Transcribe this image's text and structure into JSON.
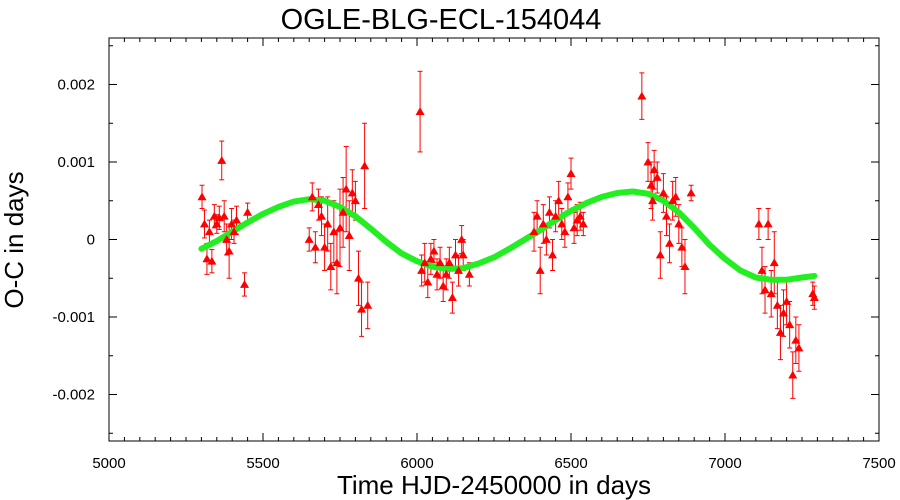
{
  "chart_data": {
    "type": "scatter",
    "title": "OGLE-BLG-ECL-154044",
    "xlabel": "Time HJD-2450000 in days",
    "ylabel": "O-C in days",
    "xlim": [
      5000,
      7500
    ],
    "ylim": [
      -0.0026,
      0.0026
    ],
    "x_ticks": [
      5000,
      5500,
      6000,
      6500,
      7000,
      7500
    ],
    "x_tick_labels": [
      "5000",
      "5500",
      "6000",
      "6500",
      "7000",
      "7500"
    ],
    "y_ticks": [
      -0.002,
      -0.001,
      0,
      0.001,
      0.002
    ],
    "y_tick_labels": [
      "-0.002",
      "-0.001",
      "0",
      "0.001",
      "0.002"
    ],
    "grid": false,
    "legend": "none",
    "series": [
      {
        "type": "scatter-errorbar",
        "color": "#ff0000",
        "marker": "triangle",
        "points": [
          {
            "x": 5302,
            "y": 0.00055,
            "err": 0.00015
          },
          {
            "x": 5310,
            "y": 0.0002,
            "err": 0.00018
          },
          {
            "x": 5318,
            "y": -0.00025,
            "err": 0.0002
          },
          {
            "x": 5326,
            "y": 0.0001,
            "err": 0.00015
          },
          {
            "x": 5334,
            "y": -0.00028,
            "err": 0.00015
          },
          {
            "x": 5342,
            "y": 0.0003,
            "err": 0.00015
          },
          {
            "x": 5350,
            "y": 0.0002,
            "err": 0.00012
          },
          {
            "x": 5358,
            "y": 0.00028,
            "err": 0.00015
          },
          {
            "x": 5366,
            "y": 0.00102,
            "err": 0.00025
          },
          {
            "x": 5374,
            "y": 0.0003,
            "err": 0.0002
          },
          {
            "x": 5382,
            "y": 0.0,
            "err": 0.0002
          },
          {
            "x": 5390,
            "y": -0.00015,
            "err": 0.00035
          },
          {
            "x": 5398,
            "y": 0.0002,
            "err": 0.0002
          },
          {
            "x": 5406,
            "y": 0.0001,
            "err": 0.00015
          },
          {
            "x": 5414,
            "y": 0.00025,
            "err": 0.00018
          },
          {
            "x": 5440,
            "y": -0.00058,
            "err": 0.00015
          },
          {
            "x": 5450,
            "y": 0.00035,
            "err": 0.00012
          },
          {
            "x": 5650,
            "y": 0.0,
            "err": 0.00015
          },
          {
            "x": 5660,
            "y": 0.00055,
            "err": 0.00018
          },
          {
            "x": 5670,
            "y": -0.0001,
            "err": 0.0002
          },
          {
            "x": 5680,
            "y": 0.00045,
            "err": 0.0002
          },
          {
            "x": 5690,
            "y": 0.0003,
            "err": 0.00025
          },
          {
            "x": 5700,
            "y": -0.0001,
            "err": 0.0003
          },
          {
            "x": 5710,
            "y": 0.0002,
            "err": 0.00035
          },
          {
            "x": 5720,
            "y": -0.00035,
            "err": 0.0003
          },
          {
            "x": 5730,
            "y": 0.0001,
            "err": 0.0004
          },
          {
            "x": 5740,
            "y": -0.0003,
            "err": 0.0004
          },
          {
            "x": 5750,
            "y": 0.00015,
            "err": 0.0005
          },
          {
            "x": 5760,
            "y": 0.00035,
            "err": 0.00045
          },
          {
            "x": 5770,
            "y": 0.00065,
            "err": 0.00055
          },
          {
            "x": 5780,
            "y": 5e-05,
            "err": 0.00045
          },
          {
            "x": 5790,
            "y": 0.0006,
            "err": 0.0003
          },
          {
            "x": 5800,
            "y": 0.0005,
            "err": 0.00025
          },
          {
            "x": 5810,
            "y": -0.0005,
            "err": 0.00035
          },
          {
            "x": 5820,
            "y": -0.0009,
            "err": 0.00035
          },
          {
            "x": 5830,
            "y": 0.00095,
            "err": 0.00055
          },
          {
            "x": 5840,
            "y": -0.00085,
            "err": 0.0003
          },
          {
            "x": 6010,
            "y": 0.00165,
            "err": 0.00052
          },
          {
            "x": 6015,
            "y": -0.0004,
            "err": 0.0002
          },
          {
            "x": 6025,
            "y": -0.0003,
            "err": 0.00025
          },
          {
            "x": 6035,
            "y": -0.00055,
            "err": 0.0002
          },
          {
            "x": 6045,
            "y": -0.00025,
            "err": 0.0002
          },
          {
            "x": 6055,
            "y": -0.00015,
            "err": 0.00015
          },
          {
            "x": 6065,
            "y": -0.00045,
            "err": 0.0002
          },
          {
            "x": 6075,
            "y": -0.0003,
            "err": 0.0002
          },
          {
            "x": 6085,
            "y": -0.0006,
            "err": 0.0002
          },
          {
            "x": 6095,
            "y": -0.00045,
            "err": 0.0002
          },
          {
            "x": 6105,
            "y": -0.0003,
            "err": 0.0002
          },
          {
            "x": 6115,
            "y": -0.00075,
            "err": 0.0002
          },
          {
            "x": 6125,
            "y": -0.0002,
            "err": 0.0002
          },
          {
            "x": 6135,
            "y": -0.0004,
            "err": 0.0002
          },
          {
            "x": 6145,
            "y": 0.0,
            "err": 0.00018
          },
          {
            "x": 6150,
            "y": -0.0002,
            "err": 0.0002
          },
          {
            "x": 6170,
            "y": -0.00045,
            "err": 0.00015
          },
          {
            "x": 6380,
            "y": 0.0001,
            "err": 0.00025
          },
          {
            "x": 6390,
            "y": 0.0003,
            "err": 0.0002
          },
          {
            "x": 6400,
            "y": -0.0004,
            "err": 0.0003
          },
          {
            "x": 6410,
            "y": 0.0002,
            "err": 0.00025
          },
          {
            "x": 6420,
            "y": 0.0,
            "err": 0.0002
          },
          {
            "x": 6430,
            "y": 0.00035,
            "err": 0.0002
          },
          {
            "x": 6440,
            "y": -0.0002,
            "err": 0.0002
          },
          {
            "x": 6450,
            "y": 0.0003,
            "err": 0.0002
          },
          {
            "x": 6460,
            "y": 0.0005,
            "err": 0.00025
          },
          {
            "x": 6470,
            "y": 0.0002,
            "err": 0.0002
          },
          {
            "x": 6480,
            "y": 0.0001,
            "err": 0.0002
          },
          {
            "x": 6490,
            "y": 0.00055,
            "err": 0.00018
          },
          {
            "x": 6500,
            "y": 0.00085,
            "err": 0.0002
          },
          {
            "x": 6510,
            "y": 0.00015,
            "err": 0.0002
          },
          {
            "x": 6520,
            "y": 0.00025,
            "err": 0.0002
          },
          {
            "x": 6530,
            "y": 0.0003,
            "err": 0.00018
          },
          {
            "x": 6540,
            "y": 0.0002,
            "err": 0.00015
          },
          {
            "x": 6730,
            "y": 0.00185,
            "err": 0.0003
          },
          {
            "x": 6750,
            "y": 0.001,
            "err": 0.00025
          },
          {
            "x": 6760,
            "y": 0.0007,
            "err": 0.0003
          },
          {
            "x": 6765,
            "y": 0.0005,
            "err": 0.00025
          },
          {
            "x": 6770,
            "y": 0.0009,
            "err": 0.00025
          },
          {
            "x": 6780,
            "y": 0.0008,
            "err": 0.0002
          },
          {
            "x": 6790,
            "y": -0.0002,
            "err": 0.0003
          },
          {
            "x": 6800,
            "y": 0.0006,
            "err": 0.00025
          },
          {
            "x": 6810,
            "y": 0.0003,
            "err": 0.00025
          },
          {
            "x": 6820,
            "y": -5e-05,
            "err": 0.00025
          },
          {
            "x": 6830,
            "y": 0.0005,
            "err": 0.00025
          },
          {
            "x": 6840,
            "y": 0.00055,
            "err": 0.00025
          },
          {
            "x": 6850,
            "y": 0.0002,
            "err": 0.00025
          },
          {
            "x": 6860,
            "y": -0.0001,
            "err": 0.00025
          },
          {
            "x": 6870,
            "y": -0.00035,
            "err": 0.00035
          },
          {
            "x": 6890,
            "y": 0.0006,
            "err": 0.0001
          },
          {
            "x": 7110,
            "y": 0.0002,
            "err": 0.0002
          },
          {
            "x": 7120,
            "y": -0.0004,
            "err": 0.0003
          },
          {
            "x": 7130,
            "y": -0.00065,
            "err": 0.0003
          },
          {
            "x": 7140,
            "y": 0.0002,
            "err": 0.0002
          },
          {
            "x": 7150,
            "y": -0.0007,
            "err": 0.0003
          },
          {
            "x": 7160,
            "y": -0.0003,
            "err": 0.0004
          },
          {
            "x": 7170,
            "y": -0.00085,
            "err": 0.0003
          },
          {
            "x": 7180,
            "y": -0.0012,
            "err": 0.00035
          },
          {
            "x": 7190,
            "y": -0.00095,
            "err": 0.0003
          },
          {
            "x": 7200,
            "y": -0.0008,
            "err": 0.0003
          },
          {
            "x": 7210,
            "y": -0.0011,
            "err": 0.0003
          },
          {
            "x": 7220,
            "y": -0.00175,
            "err": 0.0003
          },
          {
            "x": 7230,
            "y": -0.0013,
            "err": 0.0003
          },
          {
            "x": 7240,
            "y": -0.0014,
            "err": 0.0003
          },
          {
            "x": 7285,
            "y": -0.0007,
            "err": 0.00015
          },
          {
            "x": 7290,
            "y": -0.00075,
            "err": 0.00015
          }
        ]
      },
      {
        "type": "line",
        "color": "#22ee22",
        "x": [
          5300,
          5350,
          5400,
          5450,
          5500,
          5550,
          5600,
          5650,
          5700,
          5750,
          5800,
          5850,
          5900,
          5950,
          6000,
          6050,
          6100,
          6150,
          6200,
          6250,
          6300,
          6350,
          6400,
          6450,
          6500,
          6550,
          6600,
          6650,
          6700,
          6750,
          6800,
          6850,
          6900,
          6950,
          7000,
          7050,
          7100,
          7150,
          7200,
          7250,
          7290
        ],
        "y": [
          -0.00012,
          -2e-05,
          0.0001,
          0.00022,
          0.00033,
          0.00042,
          0.00049,
          0.00052,
          0.0005,
          0.00042,
          0.0003,
          0.00014,
          -3e-05,
          -0.00018,
          -0.00028,
          -0.00035,
          -0.00038,
          -0.00037,
          -0.00031,
          -0.00023,
          -0.00012,
          0.0,
          0.00012,
          0.00025,
          0.00037,
          0.00047,
          0.00055,
          0.0006,
          0.00062,
          0.00059,
          0.0005,
          0.00035,
          0.00015,
          -7e-05,
          -0.00025,
          -0.0004,
          -0.00049,
          -0.00052,
          -0.00052,
          -0.00049,
          -0.00047
        ]
      }
    ]
  }
}
